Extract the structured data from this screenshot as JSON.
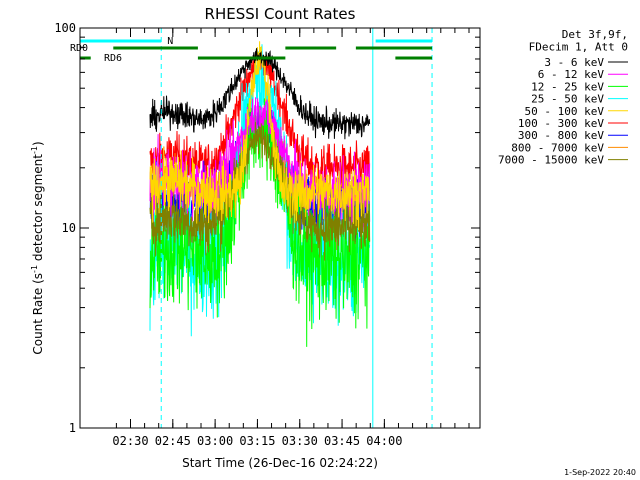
{
  "chart_data": {
    "type": "line",
    "title": "RHESSI Count Rates",
    "xlabel": "Start Time (26-Dec-16 02:24:22)",
    "ylabel_main": "Count Rate (s",
    "ylabel_sup1": "-1",
    "ylabel_mid": " detector segment",
    "ylabel_sup2": "-1",
    "ylabel_end": ")",
    "y_scale": "log",
    "ylim": [
      1,
      100
    ],
    "y_ticks": [
      {
        "value": 1,
        "label": "1"
      },
      {
        "value": 10,
        "label": "10"
      },
      {
        "value": 100,
        "label": "100"
      }
    ],
    "xlim_min": [
      -12.3,
      129.5
    ],
    "x_ticks": [
      {
        "t_min": 5.6,
        "label": "02:30"
      },
      {
        "t_min": 20.6,
        "label": "02:45"
      },
      {
        "t_min": 35.6,
        "label": "03:00"
      },
      {
        "t_min": 50.6,
        "label": "03:15"
      },
      {
        "t_min": 65.6,
        "label": "03:30"
      },
      {
        "t_min": 80.6,
        "label": "03:45"
      },
      {
        "t_min": 95.6,
        "label": "04:00"
      }
    ],
    "legend_header": [
      "Det 3f,9f,",
      "FDecim 1, Att 0"
    ],
    "legend_position": "top-right",
    "series": [
      {
        "name": "3 - 6 keV",
        "color": "#000000",
        "base": 33,
        "peak": 72,
        "noise": 0.05,
        "width": 11
      },
      {
        "name": "6 - 12 keV",
        "color": "#ff00ff",
        "base": 15,
        "peak": 38,
        "noise": 0.12,
        "width": 9
      },
      {
        "name": "12 - 25 keV",
        "color": "#00ff00",
        "base": 7,
        "peak": 30,
        "noise": 0.22,
        "width": 8
      },
      {
        "name": "25 - 50 keV",
        "color": "#00ffff",
        "base": 7,
        "peak": 55,
        "noise": 0.22,
        "width": 7
      },
      {
        "name": "50 - 100 keV",
        "color": "#ffd700",
        "base": 15,
        "peak": 70,
        "noise": 0.1,
        "width": 4
      },
      {
        "name": "100 - 300 keV",
        "color": "#ff0000",
        "base": 20,
        "peak": 65,
        "noise": 0.08,
        "width": 9
      },
      {
        "name": "300 - 800 keV",
        "color": "#0000ff",
        "base": 12,
        "peak": 34,
        "noise": 0.12,
        "width": 9
      },
      {
        "name": "800 - 7000 keV",
        "color": "#ff8c00",
        "base": 15,
        "peak": 32,
        "noise": 0.08,
        "width": 9
      },
      {
        "name": "7000 - 15000 keV",
        "color": "#808000",
        "base": 10,
        "peak": 28,
        "noise": 0.1,
        "width": 9
      }
    ],
    "annotations": {
      "rd0_label": "RD0",
      "rd6_label": "RD6",
      "n_label": "N",
      "rd0_segments_min": [
        [
          -0.5,
          29.5
        ],
        [
          60.5,
          78.5
        ],
        [
          85.5,
          112.5
        ]
      ],
      "rd6_segments_min": [
        [
          -12.3,
          -8.5
        ],
        [
          29.5,
          60.5
        ],
        [
          99.5,
          112.5
        ]
      ],
      "n_segments_min": [
        [
          -12.3,
          16.5
        ],
        [
          92.5,
          112.5
        ]
      ],
      "solid_vlines_min": [
        -12.3,
        91.5
      ],
      "dashed_vlines_min": [
        16.5,
        112.5
      ]
    },
    "data_range_min": [
      12.5,
      90.5
    ],
    "peak_min": 51.5
  },
  "footer_timestamp": "1-Sep-2022 20:40",
  "colors": {
    "rd_bars": "#008000",
    "flag_lines": "#00ffff"
  }
}
